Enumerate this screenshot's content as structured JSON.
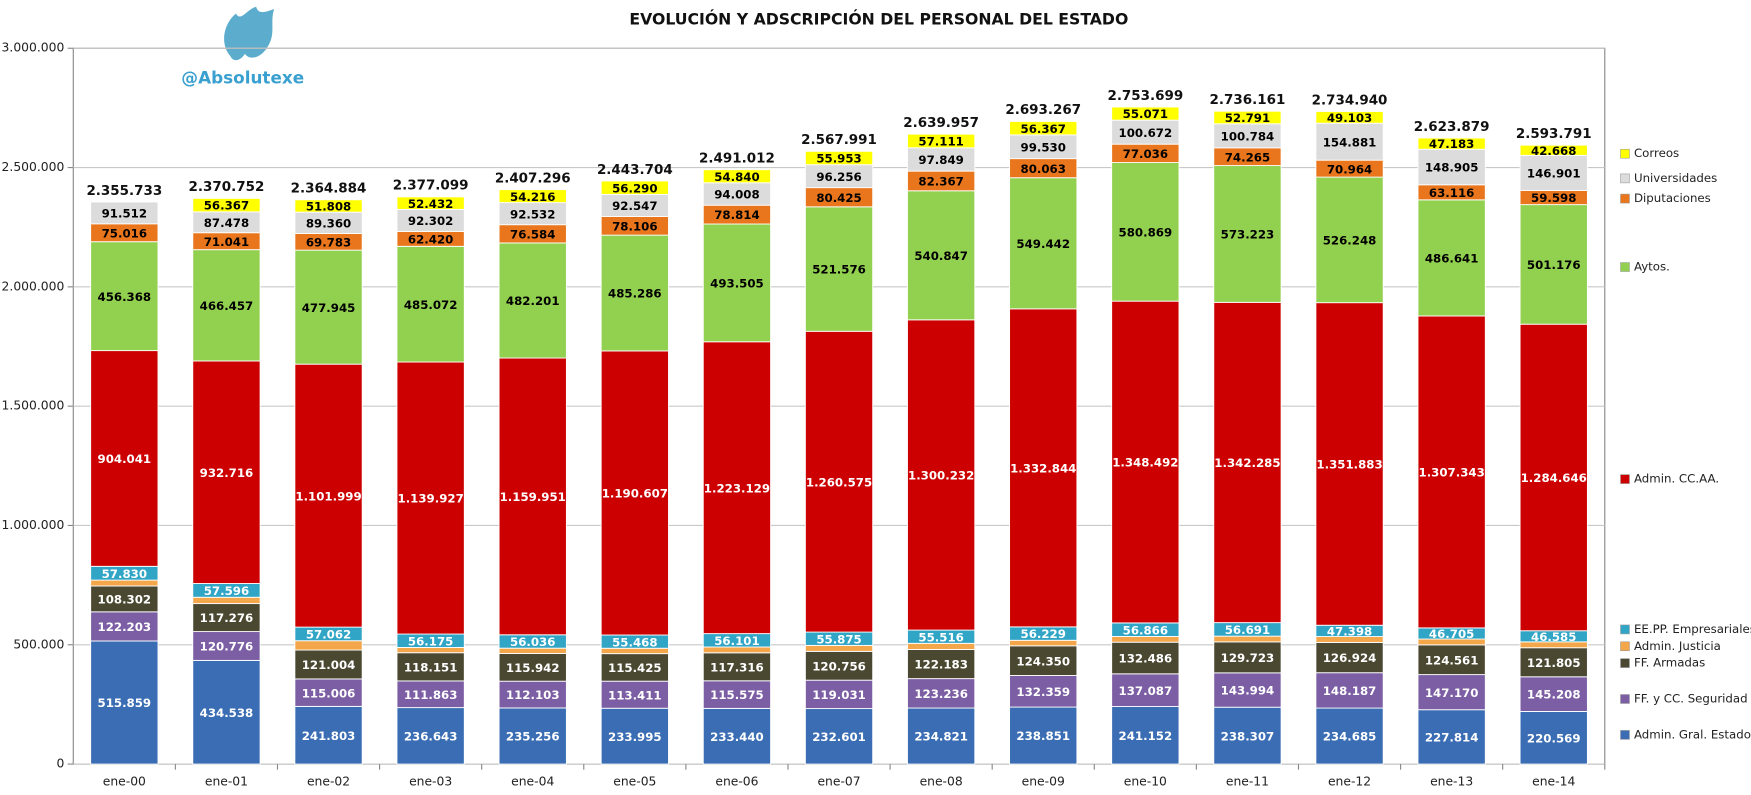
{
  "chart_data": {
    "type": "stacked-bar",
    "title": "EVOLUCIÓN Y ADSCRIPCIÓN DEL PERSONAL DEL ESTADO",
    "watermark": "@Absolutexe",
    "categories": [
      "ene-00",
      "ene-01",
      "ene-02",
      "ene-03",
      "ene-04",
      "ene-05",
      "ene-06",
      "ene-07",
      "ene-08",
      "ene-09",
      "ene-10",
      "ene-11",
      "ene-12",
      "ene-13",
      "ene-14"
    ],
    "ylim": [
      0,
      3000000
    ],
    "yticks": [
      0,
      {
        "value": 500000,
        "label": "500.000"
      },
      {
        "value": 1000000,
        "label": "1.000.000"
      },
      {
        "value": 1500000,
        "label": "1.500.000"
      },
      {
        "value": 2000000,
        "label": "2.000.000"
      },
      {
        "value": 2500000,
        "label": "2.500.000"
      },
      {
        "value": 3000000,
        "label": "3.000.000"
      }
    ],
    "grid": true,
    "legend": "right",
    "total_labels": [
      "2.355.733",
      "2.370.752",
      "2.364.884",
      "2.377.099",
      "2.407.296",
      "2.443.704",
      "2.491.012",
      "2.567.991",
      "2.639.957",
      "2.693.267",
      "2.753.699",
      "2.736.161",
      "2.734.940",
      "2.623.879",
      "2.593.791"
    ],
    "series": [
      {
        "name": "Admin. Gral. Estado",
        "color": "#3a6db3",
        "label_color": "#ffffff",
        "values": [
          515859,
          434538,
          241803,
          236643,
          235256,
          233995,
          233440,
          232601,
          234821,
          238851,
          241152,
          238307,
          234685,
          227814,
          220569
        ],
        "value_labels": [
          "515.859",
          "434.538",
          "241.803",
          "236.643",
          "235.256",
          "233.995",
          "233.440",
          "232.601",
          "234.821",
          "238.851",
          "241.152",
          "238.307",
          "234.685",
          "227.814",
          "220.569"
        ]
      },
      {
        "name": "FF. y CC. Seguridad",
        "color": "#7b5ea3",
        "label_color": "#ffffff",
        "values": [
          122203,
          120776,
          115006,
          111863,
          112103,
          113411,
          115575,
          119031,
          123236,
          132359,
          137087,
          143994,
          148187,
          147170,
          145208
        ],
        "value_labels": [
          "122.203",
          "120.776",
          "115.006",
          "111.863",
          "112.103",
          "113.411",
          "115.575",
          "119.031",
          "123.236",
          "132.359",
          "137.087",
          "143.994",
          "148.187",
          "147.170",
          "145.208"
        ]
      },
      {
        "name": "FF. Armadas",
        "color": "#4b4832",
        "label_color": "#ffffff",
        "values": [
          108302,
          117276,
          121004,
          118151,
          115942,
          115425,
          117316,
          120756,
          122183,
          124350,
          132486,
          129723,
          126924,
          124561,
          121805
        ],
        "value_labels": [
          "108.302",
          "117.276",
          "121.004",
          "118.151",
          "115.942",
          "115.425",
          "117.316",
          "120.756",
          "122.183",
          "124.350",
          "132.486",
          "129.723",
          "126.924",
          "124.561",
          "121.805"
        ]
      },
      {
        "name": "Admin. Justicia",
        "color": "#f4a64a",
        "label_color": "#000000",
        "values": [
          24602,
          26507,
          39114,
          22114,
          22475,
          22569,
          24284,
          24943,
          25795,
          23232,
          23968,
          24098,
          24667,
          24441,
          24635
        ]
      },
      {
        "name": "EE.PP. Empresariales",
        "color": "#31a5c6",
        "label_color": "#ffffff",
        "values": [
          57830,
          57596,
          57062,
          56175,
          56036,
          55468,
          56101,
          55875,
          55516,
          56229,
          56866,
          56691,
          47398,
          46705,
          46585
        ],
        "value_labels": [
          "57.830",
          "57.596",
          "57.062",
          "56.175",
          "56.036",
          "55.468",
          "56.101",
          "55.875",
          "55.516",
          "56.229",
          "56.866",
          "56.691",
          "47.398",
          "46.705",
          "46.585"
        ]
      },
      {
        "name": "Admin. CC.AA.",
        "color": "#cc0000",
        "label_color": "#ffffff",
        "values": [
          904041,
          932716,
          1101999,
          1139927,
          1159951,
          1190607,
          1223129,
          1260575,
          1300232,
          1332844,
          1348492,
          1342285,
          1351883,
          1307343,
          1284646
        ],
        "value_labels": [
          "904.041",
          "932.716",
          "1.101.999",
          "1.139.927",
          "1.159.951",
          "1.190.607",
          "1.223.129",
          "1.260.575",
          "1.300.232",
          "1.332.844",
          "1.348.492",
          "1.342.285",
          "1.351.883",
          "1.307.343",
          "1.284.646"
        ]
      },
      {
        "name": "Aytos.",
        "color": "#92d050",
        "label_color": "#000000",
        "values": [
          456368,
          466457,
          477945,
          485072,
          482201,
          485286,
          493505,
          521576,
          540847,
          549442,
          580869,
          573223,
          526248,
          486641,
          501176
        ],
        "value_labels": [
          "456.368",
          "466.457",
          "477.945",
          "485.072",
          "482.201",
          "485.286",
          "493.505",
          "521.576",
          "540.847",
          "549.442",
          "580.869",
          "573.223",
          "526.248",
          "486.641",
          "501.176"
        ]
      },
      {
        "name": "Diputaciones",
        "color": "#e9761c",
        "label_color": "#000000",
        "values": [
          75016,
          71041,
          69783,
          62420,
          76584,
          78106,
          78814,
          80425,
          82367,
          80063,
          77036,
          74265,
          70964,
          63116,
          59598
        ],
        "value_labels": [
          "75.016",
          "71.041",
          "69.783",
          "62.420",
          "76.584",
          "78.106",
          "78.814",
          "80.425",
          "82.367",
          "80.063",
          "77.036",
          "74.265",
          "70.964",
          "63.116",
          "59.598"
        ]
      },
      {
        "name": "Universidades",
        "color": "#dcdcdc",
        "label_color": "#000000",
        "values": [
          91512,
          87478,
          89360,
          92302,
          92532,
          92547,
          94008,
          96256,
          97849,
          99530,
          100672,
          100784,
          154881,
          148905,
          146901
        ],
        "value_labels": [
          "91.512",
          "87.478",
          "89.360",
          "92.302",
          "92.532",
          "92.547",
          "94.008",
          "96.256",
          "97.849",
          "99.530",
          "100.672",
          "100.784",
          "154.881",
          "148.905",
          "146.901"
        ]
      },
      {
        "name": "Correos",
        "color": "#ffff00",
        "label_color": "#000000",
        "values": [
          null,
          56367,
          51808,
          52432,
          54216,
          56290,
          54840,
          55953,
          57111,
          56367,
          55071,
          52791,
          49103,
          47183,
          42668
        ],
        "value_labels": [
          null,
          "56.367",
          "51.808",
          "52.432",
          "54.216",
          "56.290",
          "54.840",
          "55.953",
          "57.111",
          "56.367",
          "55.071",
          "52.791",
          "49.103",
          "47.183",
          "42.668"
        ]
      }
    ]
  }
}
